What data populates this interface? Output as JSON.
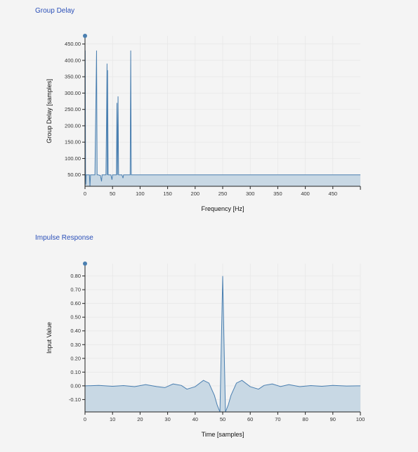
{
  "charts": [
    {
      "panel_title": "Group Delay",
      "chart_data": {
        "type": "area",
        "title": "Group Delay",
        "xlabel": "Frequency [Hz]",
        "ylabel": "Group Delay [samples]",
        "xlim": [
          0,
          500
        ],
        "ylim": [
          15,
          475
        ],
        "xticks": [
          0,
          50,
          100,
          150,
          200,
          250,
          300,
          350,
          400,
          450
        ],
        "xtick_labels": [
          "0",
          "50",
          "100",
          "150",
          "200",
          "250",
          "300",
          "350",
          "400",
          "450"
        ],
        "yticks": [
          50,
          100,
          150,
          200,
          250,
          300,
          350,
          400,
          450
        ],
        "ytick_labels": [
          "50.00",
          "100.00",
          "150.00",
          "200.00",
          "250.00",
          "300.00",
          "350.00",
          "400.00",
          "450.00"
        ],
        "grid": true,
        "series": [
          {
            "x": [
              0,
              0.4,
              1,
              1.5,
              2,
              4,
              8,
              9,
              10,
              11,
              12,
              18,
              20,
              21,
              22,
              23,
              24,
              28,
              30,
              31,
              32,
              38,
              39,
              40,
              40.5,
              41,
              42,
              43,
              47,
              49,
              50,
              51,
              52,
              53,
              57,
              58,
              59,
              60,
              61,
              62,
              63,
              64,
              67,
              69,
              70,
              71,
              72,
              73,
              77,
              80,
              82,
              83,
              84,
              85,
              90,
              100,
              200,
              300,
              400,
              500
            ],
            "y": [
              50,
              430,
              50,
              20,
              50,
              50,
              50,
              15,
              50,
              50,
              50,
              50,
              300,
              430,
              50,
              50,
              50,
              48,
              30,
              50,
              50,
              50,
              200,
              390,
              50,
              370,
              50,
              50,
              50,
              35,
              50,
              50,
              50,
              50,
              50,
              270,
              50,
              290,
              50,
              50,
              50,
              50,
              50,
              40,
              50,
              50,
              50,
              50,
              50,
              50,
              50,
              430,
              50,
              50,
              50,
              50,
              50,
              50,
              50,
              50
            ],
            "color": "#4a7fb0",
            "fill": "#c8d8e4"
          }
        ]
      }
    },
    {
      "panel_title": "Impulse Response",
      "chart_data": {
        "type": "area",
        "title": "Impulse Response",
        "xlabel": "Time [samples]",
        "ylabel": "Input Value",
        "xlim": [
          0,
          100
        ],
        "ylim": [
          -0.19,
          0.89
        ],
        "xticks": [
          0,
          10,
          20,
          30,
          40,
          50,
          60,
          70,
          80,
          90,
          100
        ],
        "xtick_labels": [
          "0",
          "10",
          "20",
          "30",
          "40",
          "50",
          "60",
          "70",
          "80",
          "90",
          "100"
        ],
        "yticks": [
          -0.1,
          0,
          0.1,
          0.2,
          0.3,
          0.4,
          0.5,
          0.6,
          0.7,
          0.8
        ],
        "ytick_labels": [
          "-0.10",
          "0.00",
          "0.10",
          "0.20",
          "0.30",
          "0.40",
          "0.50",
          "0.60",
          "0.70",
          "0.80"
        ],
        "grid": true,
        "series": [
          {
            "x": [
              0,
              5,
              10,
              14,
              18,
              22,
              26,
              29,
              32,
              35,
              37,
              40,
              43,
              45,
              47,
              48,
              49,
              50,
              51,
              52,
              53,
              55,
              57,
              60,
              63,
              65,
              68,
              71,
              74,
              78,
              82,
              86,
              90,
              95,
              100
            ],
            "y": [
              0,
              0.003,
              -0.003,
              0.002,
              -0.006,
              0.009,
              -0.005,
              -0.013,
              0.014,
              0.003,
              -0.024,
              -0.006,
              0.04,
              0.02,
              -0.07,
              -0.14,
              -0.19,
              0.8,
              -0.19,
              -0.14,
              -0.07,
              0.02,
              0.04,
              -0.006,
              -0.024,
              0.003,
              0.014,
              -0.005,
              0.009,
              -0.006,
              0.002,
              -0.003,
              0.003,
              -0.001,
              0
            ],
            "color": "#4a7fb0",
            "fill": "#c8d8e4"
          }
        ]
      }
    }
  ]
}
